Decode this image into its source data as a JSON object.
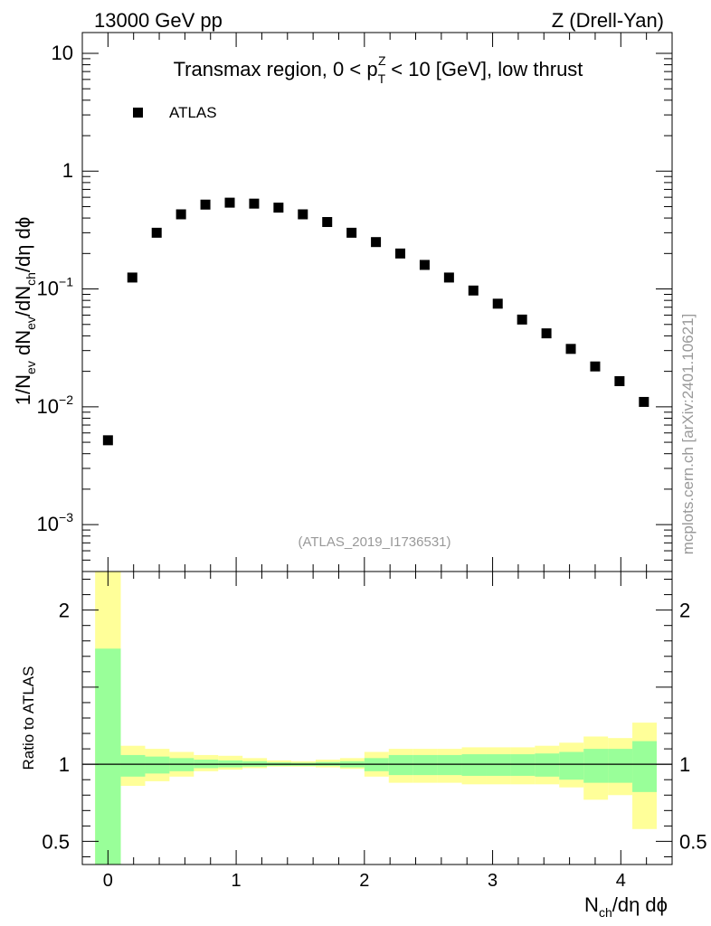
{
  "header": {
    "left": "13000 GeV pp",
    "right": "Z (Drell-Yan)"
  },
  "legend": {
    "label": "ATLAS"
  },
  "watermark": "mcplots.cern.ch [arXiv:2401.10621]",
  "analysis_id": "(ATLAS_2019_I1736531)",
  "colors": {
    "green_band": "#99ff99",
    "yellow_band": "#ffff99",
    "marker": "#000000"
  },
  "chart_data": [
    {
      "panel": "main",
      "type": "scatter",
      "title_parts": {
        "a": "Transmax region, 0 < p",
        "sub": "T",
        "sup": "Z",
        "b": " < 10 [GeV], low thrust"
      },
      "ylabel_parts": [
        "1/N",
        "ev",
        " dN",
        "ev",
        "/dN",
        "ch",
        "/dη dϕ"
      ],
      "yscale": "log",
      "ylim": [
        0.0004,
        15
      ],
      "xlim": [
        -0.2,
        4.4
      ],
      "yticks": [
        {
          "v": 10,
          "base": "10",
          "exp": ""
        },
        {
          "v": 1,
          "base": "1",
          "exp": ""
        },
        {
          "v": 0.1,
          "base": "10",
          "exp": "−1"
        },
        {
          "v": 0.01,
          "base": "10",
          "exp": "−2"
        },
        {
          "v": 0.001,
          "base": "10",
          "exp": "−3"
        }
      ],
      "series": [
        {
          "name": "ATLAS",
          "x": [
            0,
            0.19,
            0.38,
            0.57,
            0.76,
            0.95,
            1.14,
            1.33,
            1.52,
            1.71,
            1.9,
            2.09,
            2.28,
            2.47,
            2.66,
            2.85,
            3.04,
            3.23,
            3.42,
            3.61,
            3.8,
            3.99,
            4.18
          ],
          "y": [
            0.0052,
            0.125,
            0.3,
            0.43,
            0.52,
            0.54,
            0.53,
            0.49,
            0.43,
            0.37,
            0.3,
            0.25,
            0.2,
            0.16,
            0.125,
            0.097,
            0.075,
            0.055,
            0.042,
            0.031,
            0.022,
            0.0165,
            0.011
          ]
        }
      ]
    },
    {
      "panel": "ratio",
      "type": "area",
      "ylabel": "Ratio to ATLAS",
      "xlabel_parts": [
        "N",
        "ch",
        "/dη dϕ"
      ],
      "ylim": [
        0.35,
        2.25
      ],
      "xlim": [
        -0.2,
        4.4
      ],
      "yticks": [
        {
          "v": 2,
          "label": "2"
        },
        {
          "v": 1,
          "label": "1"
        },
        {
          "v": 0.5,
          "label": "0.5"
        }
      ],
      "xticks": [
        {
          "v": 0,
          "label": "0"
        },
        {
          "v": 1,
          "label": "1"
        },
        {
          "v": 2,
          "label": "2"
        },
        {
          "v": 3,
          "label": "3"
        },
        {
          "v": 4,
          "label": "4"
        }
      ],
      "reference_line": 1,
      "bin_edges": [
        -0.1,
        0.1,
        0.29,
        0.48,
        0.67,
        0.86,
        1.05,
        1.24,
        1.43,
        1.62,
        1.81,
        2.0,
        2.19,
        2.38,
        2.57,
        2.76,
        2.95,
        3.14,
        3.33,
        3.52,
        3.71,
        3.9,
        4.09,
        4.28
      ],
      "yellow_band": {
        "lo": [
          0.35,
          0.86,
          0.89,
          0.92,
          0.955,
          0.965,
          0.975,
          0.985,
          0.985,
          0.98,
          0.97,
          0.92,
          0.88,
          0.88,
          0.88,
          0.87,
          0.87,
          0.87,
          0.87,
          0.85,
          0.77,
          0.8,
          0.58
        ],
        "hi": [
          2.25,
          1.12,
          1.1,
          1.08,
          1.06,
          1.055,
          1.04,
          1.025,
          1.02,
          1.03,
          1.04,
          1.08,
          1.1,
          1.1,
          1.1,
          1.11,
          1.11,
          1.11,
          1.12,
          1.14,
          1.18,
          1.17,
          1.27
        ]
      },
      "green_band": {
        "lo": [
          0.35,
          0.92,
          0.94,
          0.955,
          0.975,
          0.98,
          0.985,
          0.99,
          0.99,
          0.99,
          0.98,
          0.955,
          0.93,
          0.93,
          0.93,
          0.925,
          0.925,
          0.925,
          0.92,
          0.9,
          0.88,
          0.88,
          0.82
        ],
        "hi": [
          1.75,
          1.06,
          1.05,
          1.04,
          1.03,
          1.025,
          1.02,
          1.012,
          1.01,
          1.015,
          1.02,
          1.04,
          1.06,
          1.06,
          1.06,
          1.065,
          1.065,
          1.065,
          1.07,
          1.08,
          1.1,
          1.1,
          1.15
        ]
      }
    }
  ]
}
